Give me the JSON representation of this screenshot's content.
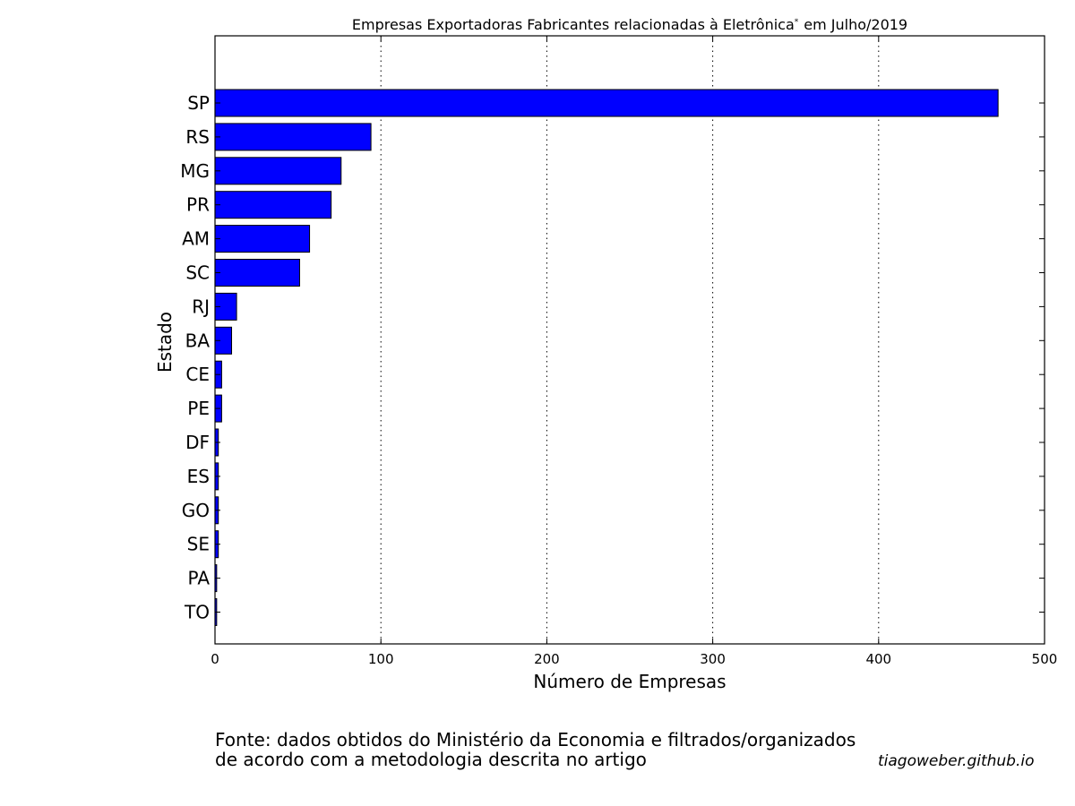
{
  "chart_data": {
    "type": "bar",
    "orientation": "horizontal",
    "title": "Empresas Exportadoras Fabricantes relacionadas à Eletrônica",
    "title_marker": "*",
    "title_suffix": "em Julho/2019",
    "xlabel": "Número de Empresas",
    "ylabel": "Estado",
    "xlim": [
      0,
      500
    ],
    "xticks": [
      0,
      100,
      200,
      300,
      400,
      500
    ],
    "grid": "vertical dotted",
    "bar_color": "#0000ff",
    "categories": [
      "SP",
      "RS",
      "MG",
      "PR",
      "AM",
      "SC",
      "RJ",
      "BA",
      "CE",
      "PE",
      "DF",
      "ES",
      "GO",
      "SE",
      "PA",
      "TO"
    ],
    "values": [
      472,
      94,
      76,
      70,
      57,
      51,
      13,
      10,
      4,
      4,
      2,
      2,
      2,
      2,
      1,
      1
    ]
  },
  "footer": {
    "source_line1": "Fonte: dados obtidos do Ministério da Economia e filtrados/organizados",
    "source_line2": "de acordo com a metodologia descrita no artigo",
    "credit": "tiagoweber.github.io"
  }
}
